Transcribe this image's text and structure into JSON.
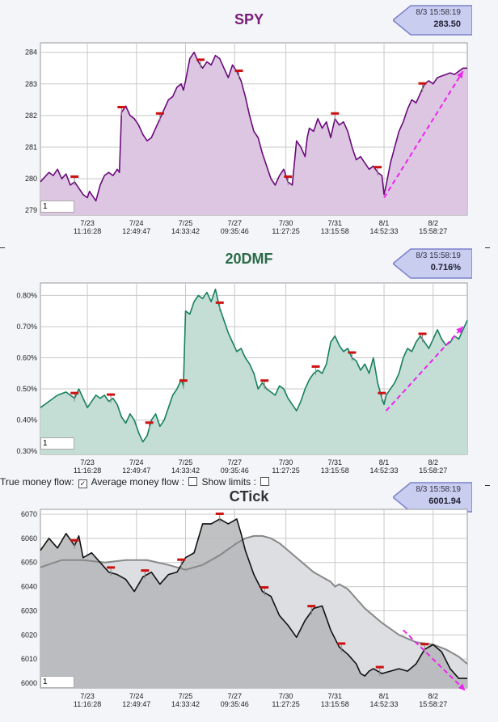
{
  "controls": {
    "true_money_flow_label": "True money flow:",
    "true_money_flow_checked": true,
    "average_money_flow_label": "Average money flow :",
    "average_money_flow_checked": false,
    "show_limits_label": "Show limits :",
    "show_limits_checked": false
  },
  "chart_data": [
    {
      "type": "line",
      "title": "SPY",
      "badge_time": "8/3 15:58:19",
      "badge_value": "283.50",
      "input_value": "1",
      "colors": {
        "title": "#7a1a7a",
        "line": "#6a0a7a",
        "fill": "#ddc6e2",
        "marker": "#cc1111",
        "trend": "#ee22ee"
      },
      "ylim": [
        278.85,
        284.3
      ],
      "yticks": [
        279,
        280,
        281,
        282,
        283,
        284
      ],
      "ytick_labels": [
        "279",
        "280",
        "281",
        "282",
        "283",
        "284"
      ],
      "xlim": [
        0,
        1
      ],
      "xtick_positions": [
        0.11,
        0.225,
        0.34,
        0.455,
        0.575,
        0.69,
        0.805,
        0.92
      ],
      "xtick_dates": [
        "7/23",
        "7/24",
        "7/25",
        "7/27",
        "7/30",
        "7/31",
        "8/1",
        "8/2"
      ],
      "xtick_times": [
        "11:16:28",
        "12:49:47",
        "14:33:42",
        "09:35:46",
        "11:27:25",
        "13:15:58",
        "14:52:33",
        "15:58:27"
      ],
      "series": [
        {
          "x": [
            0,
            0.02,
            0.03,
            0.04,
            0.05,
            0.06,
            0.07,
            0.08,
            0.09,
            0.1,
            0.11,
            0.115,
            0.12,
            0.13,
            0.14,
            0.15,
            0.16,
            0.17,
            0.18,
            0.185,
            0.19,
            0.2,
            0.21,
            0.22,
            0.23,
            0.24,
            0.25,
            0.26,
            0.27,
            0.28,
            0.29,
            0.3,
            0.31,
            0.32,
            0.33,
            0.335,
            0.34,
            0.35,
            0.36,
            0.37,
            0.38,
            0.39,
            0.4,
            0.41,
            0.42,
            0.43,
            0.44,
            0.45,
            0.46,
            0.47,
            0.48,
            0.49,
            0.5,
            0.51,
            0.52,
            0.53,
            0.54,
            0.55,
            0.56,
            0.57,
            0.58,
            0.59,
            0.6,
            0.61,
            0.62,
            0.625,
            0.63,
            0.64,
            0.65,
            0.66,
            0.67,
            0.68,
            0.69,
            0.7,
            0.71,
            0.72,
            0.73,
            0.74,
            0.75,
            0.76,
            0.77,
            0.78,
            0.79,
            0.8,
            0.805,
            0.81,
            0.82,
            0.83,
            0.84,
            0.85,
            0.86,
            0.87,
            0.88,
            0.89,
            0.9,
            0.91,
            0.92,
            0.93,
            0.94,
            0.95,
            0.96,
            0.97,
            0.98,
            0.99,
            1.0
          ],
          "y": [
            279.9,
            280.2,
            280.1,
            280.3,
            280.0,
            280.15,
            279.8,
            279.9,
            279.7,
            279.5,
            279.4,
            279.6,
            279.5,
            279.3,
            279.8,
            280.1,
            280.2,
            280.1,
            280.3,
            280.2,
            282.1,
            282.3,
            282.0,
            281.9,
            281.7,
            281.4,
            281.2,
            281.3,
            281.6,
            281.9,
            282.2,
            282.5,
            282.6,
            282.9,
            283.0,
            282.8,
            283.1,
            283.8,
            284.0,
            283.7,
            283.5,
            283.7,
            283.6,
            283.9,
            283.8,
            283.5,
            283.2,
            283.6,
            283.4,
            283.1,
            282.6,
            282.0,
            281.5,
            281.3,
            280.8,
            280.4,
            280.0,
            279.8,
            280.1,
            280.3,
            279.9,
            279.8,
            281.2,
            281.0,
            280.7,
            281.3,
            281.6,
            281.5,
            281.9,
            281.6,
            281.8,
            281.3,
            281.9,
            281.7,
            281.8,
            281.5,
            281.0,
            280.6,
            280.7,
            280.5,
            280.3,
            280.4,
            280.2,
            280.1,
            279.5,
            279.8,
            280.5,
            281.0,
            281.5,
            281.8,
            282.2,
            282.5,
            282.4,
            282.7,
            283.0,
            283.1,
            283.0,
            283.2,
            283.25,
            283.3,
            283.35,
            283.3,
            283.4,
            283.5,
            283.5
          ]
        }
      ],
      "markers": [
        0.08,
        0.19,
        0.28,
        0.375,
        0.465,
        0.58,
        0.69,
        0.79,
        0.895
      ],
      "trend": {
        "x": [
          0.805,
          0.99
        ],
        "y": [
          279.4,
          283.4
        ]
      }
    },
    {
      "type": "line",
      "title": "20DMF",
      "badge_time": "8/3 15:58:19",
      "badge_value": "0.716%",
      "input_value": "1",
      "colors": {
        "title": "#2a6a4a",
        "line": "#178060",
        "fill": "#c4ddd5",
        "marker": "#cc1111",
        "trend": "#ee22ee"
      },
      "ylim": [
        0.29,
        0.84
      ],
      "yticks": [
        0.3,
        0.4,
        0.5,
        0.6,
        0.7,
        0.8
      ],
      "ytick_labels": [
        "0.30%",
        "0.40%",
        "0.50%",
        "0.60%",
        "0.70%",
        "0.80%"
      ],
      "xlim": [
        0,
        1
      ],
      "xtick_positions": [
        0.11,
        0.225,
        0.34,
        0.455,
        0.575,
        0.69,
        0.805,
        0.92
      ],
      "xtick_dates": [
        "7/23",
        "7/24",
        "7/25",
        "7/27",
        "7/30",
        "7/31",
        "8/1",
        "8/2"
      ],
      "xtick_times": [
        "11:16:28",
        "12:49:47",
        "14:33:42",
        "09:35:46",
        "11:27:25",
        "13:15:58",
        "14:52:33",
        "15:58:27"
      ],
      "series": [
        {
          "x": [
            0,
            0.02,
            0.04,
            0.06,
            0.08,
            0.09,
            0.1,
            0.11,
            0.12,
            0.13,
            0.14,
            0.15,
            0.16,
            0.17,
            0.18,
            0.19,
            0.2,
            0.21,
            0.22,
            0.23,
            0.24,
            0.25,
            0.26,
            0.27,
            0.28,
            0.29,
            0.3,
            0.31,
            0.32,
            0.33,
            0.335,
            0.34,
            0.35,
            0.36,
            0.37,
            0.38,
            0.39,
            0.4,
            0.41,
            0.42,
            0.43,
            0.44,
            0.45,
            0.46,
            0.47,
            0.48,
            0.49,
            0.5,
            0.51,
            0.52,
            0.53,
            0.54,
            0.55,
            0.56,
            0.57,
            0.58,
            0.59,
            0.6,
            0.61,
            0.62,
            0.63,
            0.64,
            0.65,
            0.66,
            0.67,
            0.68,
            0.69,
            0.7,
            0.71,
            0.72,
            0.73,
            0.74,
            0.75,
            0.76,
            0.77,
            0.78,
            0.79,
            0.8,
            0.805,
            0.81,
            0.82,
            0.83,
            0.84,
            0.85,
            0.86,
            0.87,
            0.88,
            0.89,
            0.9,
            0.91,
            0.92,
            0.93,
            0.94,
            0.95,
            0.96,
            0.97,
            0.98,
            0.99,
            1.0
          ],
          "y": [
            0.44,
            0.46,
            0.48,
            0.49,
            0.47,
            0.5,
            0.47,
            0.44,
            0.46,
            0.48,
            0.47,
            0.48,
            0.46,
            0.47,
            0.45,
            0.41,
            0.39,
            0.42,
            0.4,
            0.36,
            0.33,
            0.35,
            0.4,
            0.42,
            0.38,
            0.4,
            0.44,
            0.48,
            0.5,
            0.53,
            0.51,
            0.75,
            0.74,
            0.78,
            0.8,
            0.79,
            0.81,
            0.78,
            0.82,
            0.76,
            0.72,
            0.68,
            0.65,
            0.62,
            0.63,
            0.6,
            0.58,
            0.55,
            0.5,
            0.52,
            0.5,
            0.49,
            0.48,
            0.51,
            0.5,
            0.47,
            0.45,
            0.43,
            0.46,
            0.5,
            0.53,
            0.55,
            0.56,
            0.55,
            0.58,
            0.65,
            0.67,
            0.64,
            0.62,
            0.63,
            0.6,
            0.59,
            0.56,
            0.58,
            0.55,
            0.6,
            0.52,
            0.47,
            0.45,
            0.48,
            0.5,
            0.52,
            0.55,
            0.6,
            0.63,
            0.62,
            0.65,
            0.67,
            0.65,
            0.63,
            0.66,
            0.69,
            0.66,
            0.64,
            0.65,
            0.67,
            0.66,
            0.69,
            0.72
          ]
        }
      ],
      "markers": [
        0.08,
        0.165,
        0.255,
        0.335,
        0.42,
        0.525,
        0.645,
        0.73,
        0.8,
        0.895
      ],
      "trend": {
        "x": [
          0.81,
          0.99
        ],
        "y": [
          0.43,
          0.7
        ]
      }
    },
    {
      "type": "line",
      "title": "CTick",
      "badge_time": "8/3 15:58:19",
      "badge_value": "6001.94",
      "input_value": "1",
      "colors": {
        "title": "#333333",
        "line": "#111111",
        "fill": "#b4b6b9",
        "avg_line": "#888888",
        "avg_fill": "#dcdee1",
        "marker": "#cc1111",
        "trend": "#ee22ee"
      },
      "ylim": [
        5998,
        6072
      ],
      "yticks": [
        6000,
        6010,
        6020,
        6030,
        6040,
        6050,
        6060,
        6070
      ],
      "ytick_labels": [
        "6000",
        "6010",
        "6020",
        "6030",
        "6040",
        "6050",
        "6060",
        "6070"
      ],
      "xlim": [
        0,
        1
      ],
      "xtick_positions": [
        0.11,
        0.225,
        0.34,
        0.455,
        0.575,
        0.69,
        0.805,
        0.92
      ],
      "xtick_dates": [
        "7/23",
        "7/24",
        "7/25",
        "7/27",
        "7/30",
        "7/31",
        "8/1",
        "8/2"
      ],
      "xtick_times": [
        "11:16:28",
        "12:49:47",
        "14:33:42",
        "09:35:46",
        "11:27:25",
        "13:15:58",
        "14:52:33",
        "15:58:27"
      ],
      "series": [
        {
          "name": "True money flow",
          "x": [
            0,
            0.02,
            0.04,
            0.06,
            0.08,
            0.09,
            0.1,
            0.12,
            0.14,
            0.16,
            0.18,
            0.2,
            0.22,
            0.24,
            0.26,
            0.28,
            0.3,
            0.32,
            0.34,
            0.36,
            0.38,
            0.4,
            0.42,
            0.44,
            0.46,
            0.47,
            0.48,
            0.5,
            0.52,
            0.54,
            0.56,
            0.58,
            0.6,
            0.62,
            0.64,
            0.66,
            0.68,
            0.7,
            0.72,
            0.74,
            0.75,
            0.76,
            0.77,
            0.78,
            0.8,
            0.82,
            0.84,
            0.86,
            0.88,
            0.9,
            0.92,
            0.94,
            0.96,
            0.98,
            1.0
          ],
          "y": [
            6055,
            6060,
            6056,
            6062,
            6057,
            6061,
            6052,
            6054,
            6050,
            6046,
            6045,
            6043,
            6038,
            6044,
            6046,
            6041,
            6045,
            6046,
            6052,
            6054,
            6066,
            6066,
            6068,
            6066,
            6068,
            6062,
            6055,
            6045,
            6038,
            6036,
            6028,
            6024,
            6019,
            6026,
            6031,
            6032,
            6022,
            6015,
            6012,
            6008,
            6004,
            6003,
            6005,
            6006,
            6004,
            6005,
            6006,
            6005,
            6008,
            6014,
            6016,
            6013,
            6006,
            6002,
            6002
          ]
        },
        {
          "name": "Average money flow",
          "x": [
            0,
            0.05,
            0.1,
            0.15,
            0.2,
            0.25,
            0.3,
            0.34,
            0.38,
            0.42,
            0.46,
            0.48,
            0.5,
            0.52,
            0.54,
            0.56,
            0.58,
            0.6,
            0.62,
            0.64,
            0.66,
            0.68,
            0.69,
            0.7,
            0.72,
            0.74,
            0.76,
            0.8,
            0.84,
            0.88,
            0.92,
            0.95,
            0.98,
            1.0
          ],
          "y": [
            6048,
            6051,
            6051,
            6050,
            6051,
            6051,
            6049,
            6047,
            6049,
            6053,
            6058,
            6060,
            6061,
            6061,
            6060,
            6058,
            6055,
            6052,
            6049,
            6046,
            6044,
            6042,
            6040,
            6041,
            6039,
            6035,
            6031,
            6025,
            6020,
            6017,
            6016,
            6014,
            6011,
            6008
          ]
        }
      ],
      "markers": [
        0.08,
        0.165,
        0.245,
        0.33,
        0.42,
        0.525,
        0.635,
        0.705,
        0.795,
        0.9
      ],
      "trend": {
        "x": [
          0.85,
          0.995
        ],
        "y": [
          6022,
          5997
        ]
      }
    }
  ]
}
